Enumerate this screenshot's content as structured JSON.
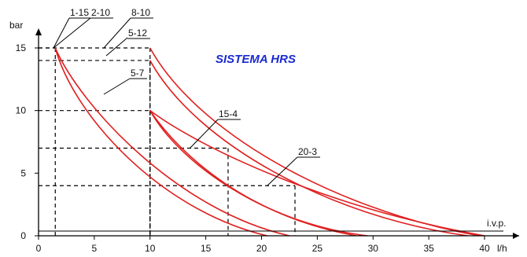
{
  "chart_data": {
    "type": "line",
    "title": "SISTEMA HRS",
    "ylabel": "bar",
    "xlabel": "l/h",
    "annotations": [
      "i.v.p."
    ],
    "xlim": [
      0,
      40
    ],
    "ylim": [
      0,
      15
    ],
    "x_ticks": [
      0,
      5,
      10,
      15,
      20,
      25,
      30,
      35,
      40
    ],
    "y_ticks": [
      0,
      5,
      10,
      15
    ],
    "colors": {
      "curves": "#e02020",
      "title": "#1a2ad0",
      "axis": "#000000"
    },
    "series": [
      {
        "name": "1-15",
        "curve_start": [
          1.5,
          15
        ],
        "curve_end": [
          20.5,
          0
        ]
      },
      {
        "name": "2-10",
        "curve_start": [
          1.5,
          15
        ],
        "curve_end": [
          22.5,
          0
        ]
      },
      {
        "name": "8-10",
        "curve_start": [
          10,
          15
        ],
        "curve_end": [
          39.5,
          0
        ]
      },
      {
        "name": "5-12",
        "curve_start": [
          10,
          14
        ],
        "curve_end": [
          38.5,
          0
        ]
      },
      {
        "name": "5-7",
        "curve_start": [
          10,
          10
        ],
        "curve_end": [
          29.5,
          0
        ]
      },
      {
        "name": "15-4",
        "curve_start": [
          10,
          10
        ],
        "curve_end": [
          28.5,
          0
        ]
      },
      {
        "name": "20-3",
        "curve_start": [
          10,
          10
        ],
        "curve_end": [
          40,
          0
        ]
      }
    ],
    "reference_points": [
      {
        "x": 1.5,
        "y": 15
      },
      {
        "x": 10,
        "y": 15
      },
      {
        "x": 10,
        "y": 14
      },
      {
        "x": 10,
        "y": 10
      },
      {
        "x": 17,
        "y": 7
      },
      {
        "x": 23,
        "y": 4
      }
    ]
  }
}
